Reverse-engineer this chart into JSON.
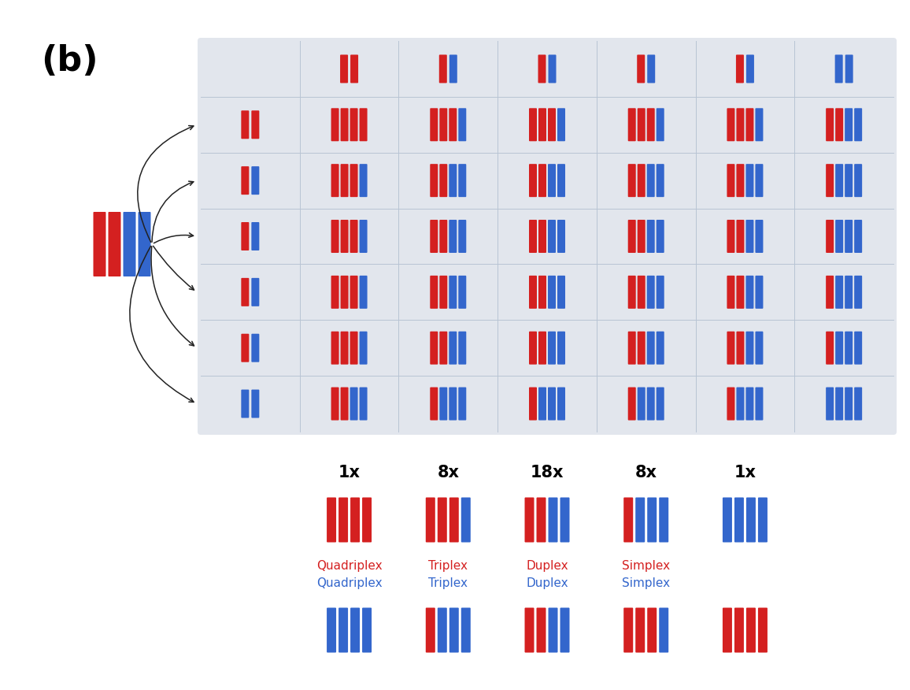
{
  "title": "(b)",
  "red": "#d42020",
  "blue": "#3366cc",
  "grid_bg": "#e2e6ed",
  "n_rows": 7,
  "n_cols": 7,
  "freq_labels": [
    "1x",
    "8x",
    "18x",
    "8x",
    "1x"
  ],
  "legend_red_labels": [
    "Quadriplex",
    "Triplex",
    "Duplex",
    "Simplex",
    ""
  ],
  "legend_blue_labels": [
    "Quadriplex",
    "Triplex",
    "Duplex",
    "Simplex",
    ""
  ],
  "col_header": [
    [],
    [
      "R",
      "R"
    ],
    [
      "R",
      "B"
    ],
    [
      "R",
      "B"
    ],
    [
      "R",
      "B"
    ],
    [
      "R",
      "B"
    ],
    [
      "B",
      "B"
    ]
  ],
  "row_header": [
    [],
    [
      "R",
      "R"
    ],
    [
      "R",
      "B"
    ],
    [
      "R",
      "B"
    ],
    [
      "R",
      "B"
    ],
    [
      "R",
      "B"
    ],
    [
      "B",
      "B"
    ]
  ]
}
